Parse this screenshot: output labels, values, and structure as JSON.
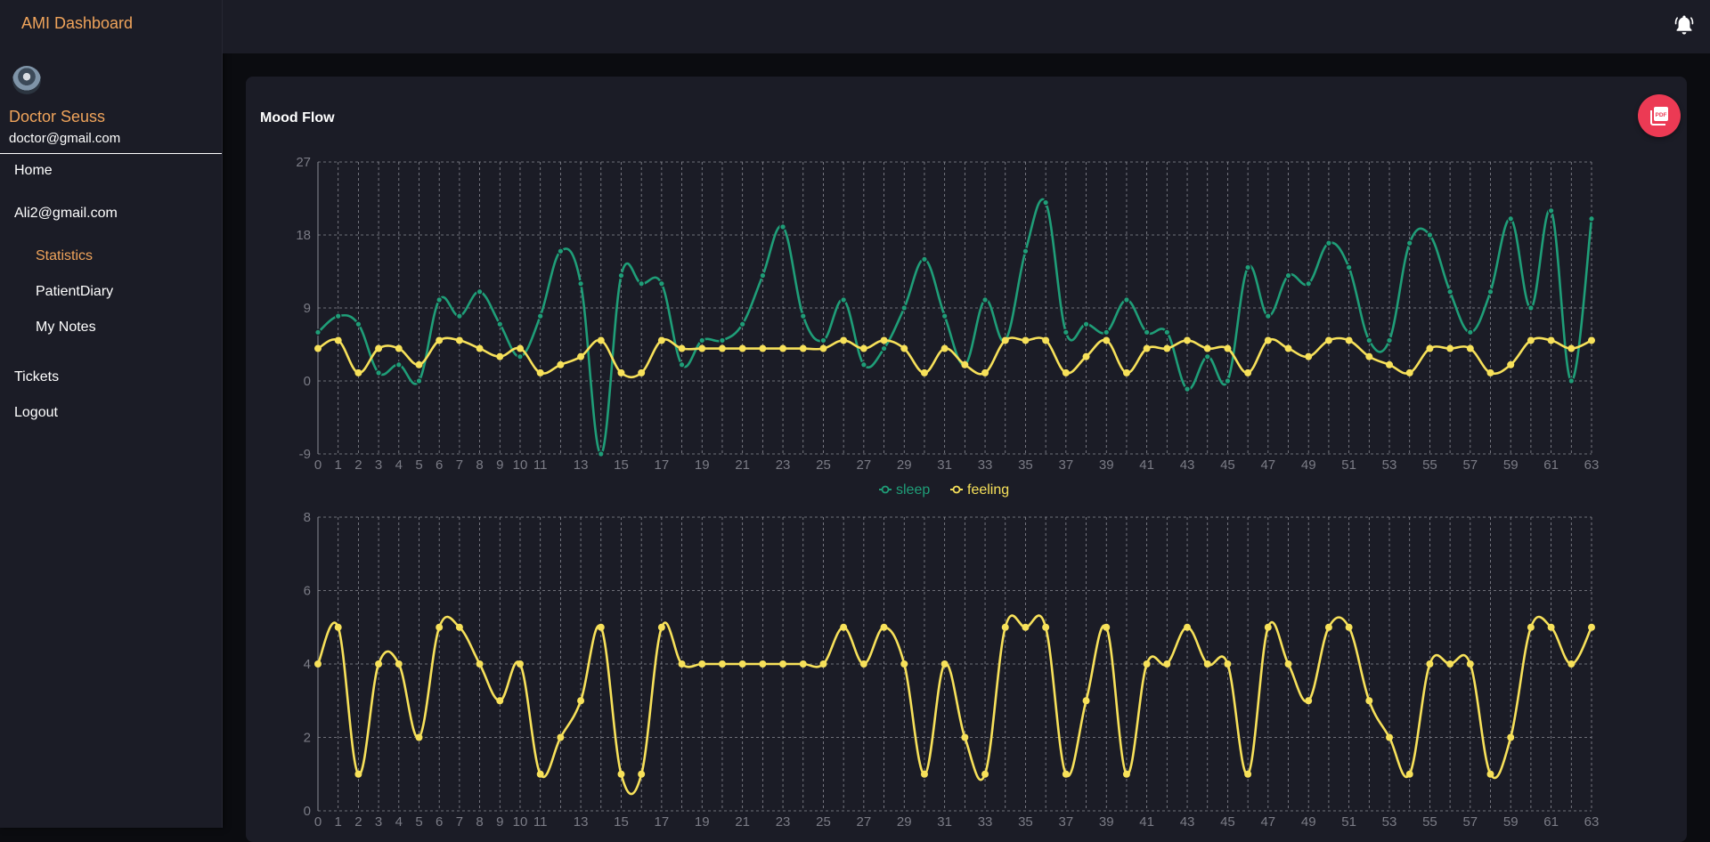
{
  "app": {
    "title": "AMI Dashboard"
  },
  "user": {
    "name": "Doctor Seuss",
    "email": "doctor@gmail.com"
  },
  "nav": {
    "home": "Home",
    "patient": "Ali2@gmail.com",
    "statistics": "Statistics",
    "diary": "PatientDiary",
    "notes": "My Notes",
    "tickets": "Tickets",
    "logout": "Logout"
  },
  "card": {
    "title": "Mood Flow"
  },
  "colors": {
    "accent": "#f0a45b",
    "sleep": "#1f9e78",
    "feeling": "#f7e15a",
    "pdf_button": "#ec3a54"
  },
  "icons": {
    "notifications": "bell-icon",
    "export": "pdf-icon"
  },
  "chart_data": [
    {
      "type": "line",
      "x": [
        0,
        1,
        2,
        3,
        4,
        5,
        6,
        7,
        8,
        9,
        10,
        11,
        12,
        13,
        14,
        15,
        16,
        17,
        18,
        19,
        20,
        21,
        22,
        23,
        24,
        25,
        26,
        27,
        28,
        29,
        30,
        31,
        32,
        33,
        34,
        35,
        36,
        37,
        38,
        39,
        40,
        41,
        42,
        43,
        44,
        45,
        46,
        47,
        48,
        49,
        50,
        51,
        52,
        53,
        54,
        55,
        56,
        57,
        58,
        59,
        60,
        61,
        62,
        63
      ],
      "x_tick_labels": [
        "0",
        "1",
        "2",
        "3",
        "4",
        "5",
        "6",
        "7",
        "8",
        "9",
        "10",
        "11",
        "13",
        "15",
        "17",
        "19",
        "21",
        "23",
        "25",
        "27",
        "29",
        "31",
        "33",
        "35",
        "37",
        "39",
        "41",
        "43",
        "45",
        "47",
        "49",
        "51",
        "53",
        "55",
        "57",
        "59",
        "61",
        "63"
      ],
      "y_ticks": [
        "-9",
        "0",
        "9",
        "18",
        "27"
      ],
      "ylim": [
        -9,
        27
      ],
      "grid": true,
      "legend": "bottom-center",
      "series": [
        {
          "name": "sleep",
          "values": [
            6,
            8,
            7,
            1,
            2,
            0,
            10,
            8,
            11,
            7,
            3,
            8,
            16,
            12,
            -9,
            13,
            12,
            12,
            2,
            5,
            5,
            7,
            13,
            19,
            8,
            5,
            10,
            2,
            4,
            9,
            15,
            8,
            2,
            10,
            5,
            16,
            22,
            6,
            7,
            6,
            10,
            6,
            6,
            -1,
            3,
            0,
            14,
            8,
            13,
            12,
            17,
            14,
            5,
            5,
            17,
            18,
            11,
            6,
            11,
            20,
            9,
            21,
            0,
            20
          ]
        },
        {
          "name": "feeling",
          "values": [
            4,
            5,
            1,
            4,
            4,
            2,
            5,
            5,
            4,
            3,
            4,
            1,
            2,
            3,
            5,
            1,
            1,
            5,
            4,
            4,
            4,
            4,
            4,
            4,
            4,
            4,
            5,
            4,
            5,
            4,
            1,
            4,
            2,
            1,
            5,
            5,
            5,
            1,
            3,
            5,
            1,
            4,
            4,
            5,
            4,
            4,
            1,
            5,
            4,
            3,
            5,
            5,
            3,
            2,
            1,
            4,
            4,
            4,
            1,
            2,
            5,
            5,
            4,
            5
          ]
        }
      ]
    },
    {
      "type": "line",
      "x": [
        0,
        1,
        2,
        3,
        4,
        5,
        6,
        7,
        8,
        9,
        10,
        11,
        12,
        13,
        14,
        15,
        16,
        17,
        18,
        19,
        20,
        21,
        22,
        23,
        24,
        25,
        26,
        27,
        28,
        29,
        30,
        31,
        32,
        33,
        34,
        35,
        36,
        37,
        38,
        39,
        40,
        41,
        42,
        43,
        44,
        45,
        46,
        47,
        48,
        49,
        50,
        51,
        52,
        53,
        54,
        55,
        56,
        57,
        58,
        59,
        60,
        61,
        62,
        63
      ],
      "x_tick_labels": [
        "0",
        "1",
        "2",
        "3",
        "4",
        "5",
        "6",
        "7",
        "8",
        "9",
        "10",
        "11",
        "13",
        "15",
        "17",
        "19",
        "21",
        "23",
        "25",
        "27",
        "29",
        "31",
        "33",
        "35",
        "37",
        "39",
        "41",
        "43",
        "45",
        "47",
        "49",
        "51",
        "53",
        "55",
        "57",
        "59",
        "61",
        "63"
      ],
      "y_ticks": [
        "0",
        "2",
        "4",
        "6",
        "8"
      ],
      "ylim": [
        0,
        8
      ],
      "grid": true,
      "series": [
        {
          "name": "feeling",
          "values": [
            4,
            5,
            1,
            4,
            4,
            2,
            5,
            5,
            4,
            3,
            4,
            1,
            2,
            3,
            5,
            1,
            1,
            5,
            4,
            4,
            4,
            4,
            4,
            4,
            4,
            4,
            5,
            4,
            5,
            4,
            1,
            4,
            2,
            1,
            5,
            5,
            5,
            1,
            3,
            5,
            1,
            4,
            4,
            5,
            4,
            4,
            1,
            5,
            4,
            3,
            5,
            5,
            3,
            2,
            1,
            4,
            4,
            4,
            1,
            2,
            5,
            5,
            4,
            5
          ]
        }
      ]
    }
  ]
}
